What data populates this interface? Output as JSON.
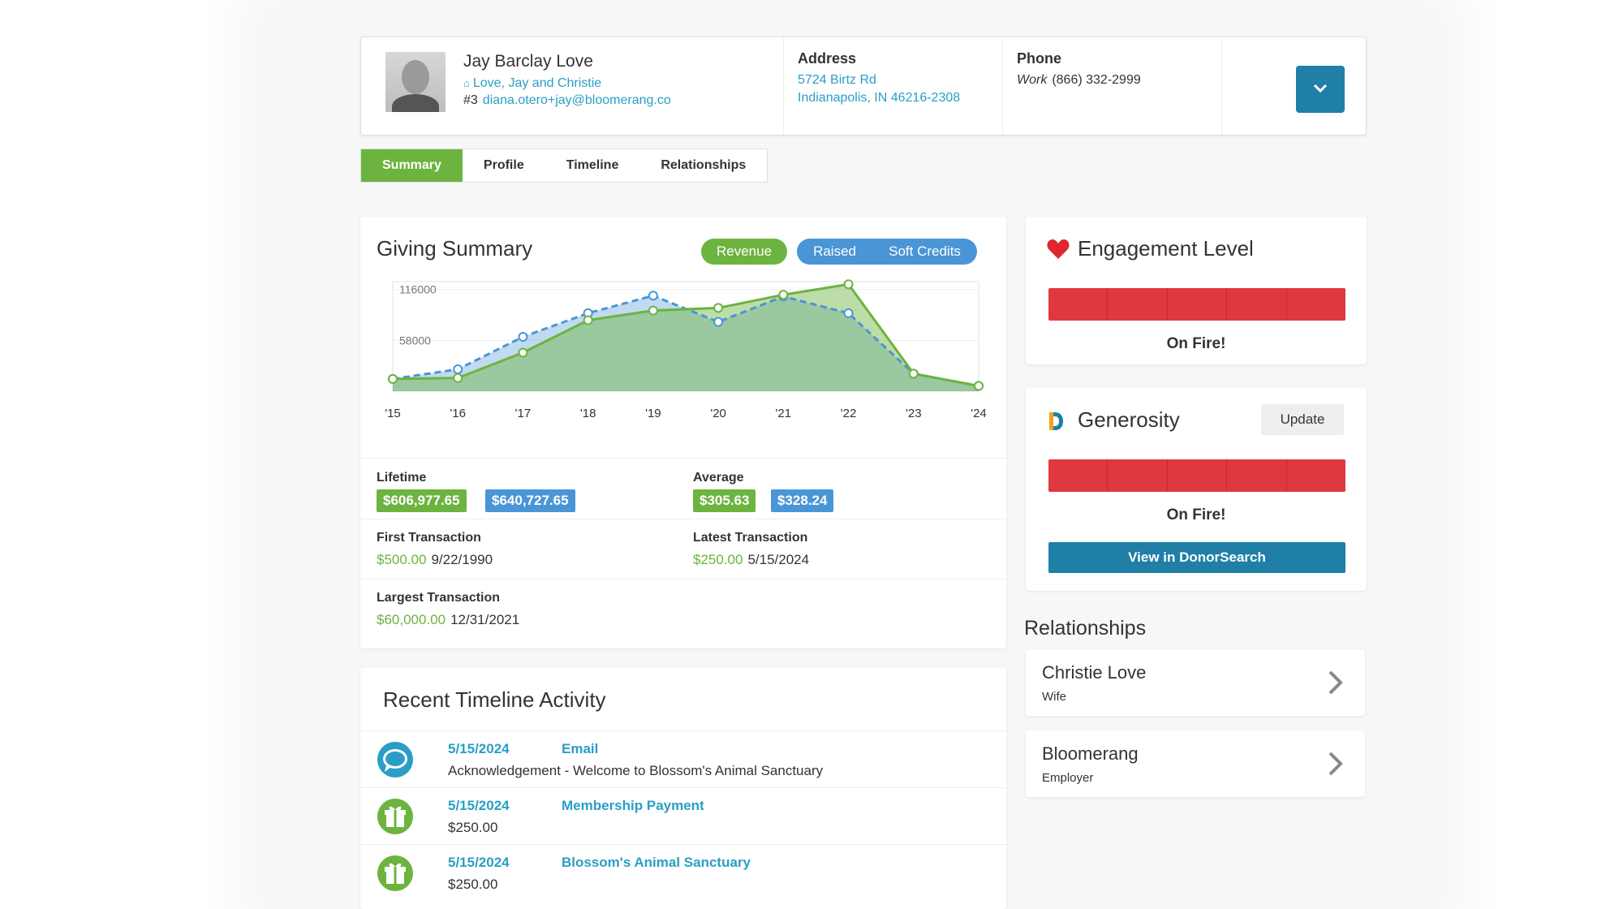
{
  "contact": {
    "name": "Jay Barclay Love",
    "household": "Love, Jay and Christie",
    "account_number": "#3",
    "email": "diana.otero+jay@bloomerang.co",
    "address_label": "Address",
    "address_line1": "5724 Birtz Rd",
    "address_line2": "Indianapolis, IN 46216-2308",
    "phone_label": "Phone",
    "phone_type": "Work",
    "phone_number": "(866) 332-2999"
  },
  "tabs": [
    {
      "label": "Summary",
      "active": true
    },
    {
      "label": "Profile",
      "active": false
    },
    {
      "label": "Timeline",
      "active": false
    },
    {
      "label": "Relationships",
      "active": false
    }
  ],
  "giving_summary": {
    "title": "Giving Summary",
    "toggle_revenue": "Revenue",
    "toggle_raised": "Raised",
    "toggle_soft_credits": "Soft Credits",
    "lifetime_label": "Lifetime",
    "lifetime_revenue": "$606,977.65",
    "lifetime_raised": "$640,727.65",
    "average_label": "Average",
    "average_revenue": "$305.63",
    "average_raised": "$328.24",
    "first_label": "First Transaction",
    "first_amount": "$500.00",
    "first_date": "9/22/1990",
    "latest_label": "Latest Transaction",
    "latest_amount": "$250.00",
    "latest_date": "5/15/2024",
    "largest_label": "Largest Transaction",
    "largest_amount": "$60,000.00",
    "largest_date": "12/31/2021"
  },
  "chart_data": {
    "type": "area",
    "categories": [
      "'15",
      "'16",
      "'17",
      "'18",
      "'19",
      "'20",
      "'21",
      "'22",
      "'23",
      "'24"
    ],
    "yticks": [
      116000,
      58000
    ],
    "ylim": [
      0,
      125000
    ],
    "series": [
      {
        "name": "Revenue",
        "color": "#6db33f",
        "style": "solid",
        "values": [
          14000,
          15000,
          44000,
          81000,
          92000,
          95000,
          110000,
          122000,
          20000,
          6000
        ]
      },
      {
        "name": "Raised",
        "color": "#4a95d6",
        "style": "dashed",
        "values": [
          14000,
          25000,
          62000,
          89000,
          109000,
          79000,
          108000,
          89000,
          20000,
          6000
        ]
      }
    ]
  },
  "engagement": {
    "title": "Engagement Level",
    "level": "On Fire!",
    "segments_filled": 5,
    "segments_total": 5
  },
  "generosity": {
    "title": "Generosity",
    "update_label": "Update",
    "level": "On Fire!",
    "segments_filled": 5,
    "segments_total": 5,
    "donorsearch_label": "View in DonorSearch"
  },
  "relationships": {
    "title": "Relationships",
    "items": [
      {
        "name": "Christie Love",
        "role": "Wife"
      },
      {
        "name": "Bloomerang",
        "role": "Employer"
      }
    ]
  },
  "timeline": {
    "title": "Recent Timeline Activity",
    "items": [
      {
        "icon": "speech-bubble-icon",
        "date": "5/15/2024",
        "type": "Email",
        "description": "Acknowledgement - Welcome to Blossom's Animal Sanctuary"
      },
      {
        "icon": "gift-icon",
        "date": "5/15/2024",
        "type": "Membership Payment",
        "description": "$250.00"
      },
      {
        "icon": "gift-icon",
        "date": "5/15/2024",
        "type": "Blossom's Animal Sanctuary",
        "description": "$250.00"
      }
    ]
  },
  "colors": {
    "primary_green": "#6db33f",
    "primary_blue": "#1f7fa6",
    "link_blue": "#2a9ec6",
    "series_blue": "#4a95d6",
    "meter_red": "#e0383f"
  }
}
